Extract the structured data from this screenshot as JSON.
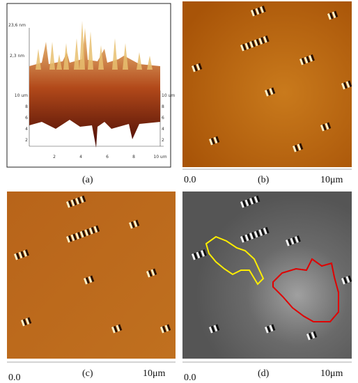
{
  "panels": [
    {
      "label": "(a)",
      "z_labels": [
        "23,6 nm",
        "2,3 nm"
      ],
      "y_axis_left": [
        "10 um",
        "8",
        "6",
        "4",
        "2"
      ],
      "y_axis_right": [
        "10 um",
        "8",
        "6",
        "4",
        "2"
      ],
      "x_axis": [
        "2",
        "4",
        "6",
        "8",
        "10 um"
      ]
    },
    {
      "label": "(b)",
      "scale_start": "0.0",
      "scale_end": "10μm"
    },
    {
      "label": "(c)",
      "scale_start": "0.0",
      "scale_end": "10μm"
    },
    {
      "label": "(d)",
      "scale_start": "0.0",
      "scale_end": "10μm"
    }
  ]
}
